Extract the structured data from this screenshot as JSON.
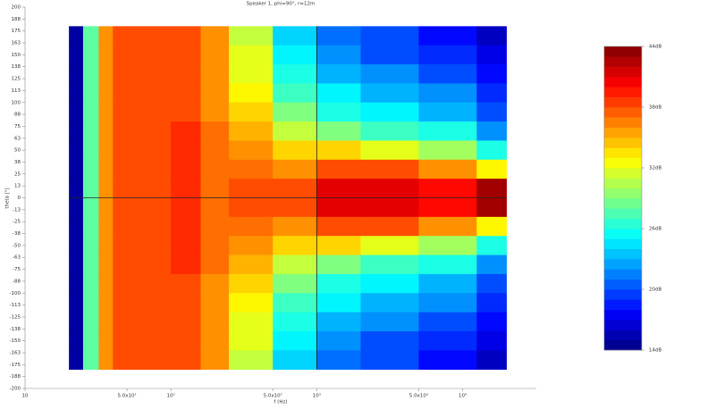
{
  "chart_data": {
    "type": "heatmap",
    "title": "Speaker 1, phi=90°, r=12m",
    "x_label": "f (Hz)",
    "y_label": "theta [°]",
    "log_x": true,
    "xlim": [
      10,
      32000
    ],
    "xticks": [
      10,
      {
        "value": 50,
        "label": "5.0x10¹"
      },
      {
        "value": 100,
        "label": "10²"
      },
      {
        "value": 500,
        "label": "5.0x10²"
      },
      {
        "value": 1000,
        "label": "10³"
      },
      {
        "value": 5000,
        "label": "5.0x10³"
      },
      {
        "value": 10000,
        "label": "10⁴"
      }
    ],
    "ylim": [
      -200,
      200
    ],
    "yticks": [
      200,
      {
        "value": 187.5,
        "label": "188"
      },
      175,
      {
        "value": 162.5,
        "label": "163"
      },
      150,
      {
        "value": 137.5,
        "label": "138"
      },
      125,
      {
        "value": 112.5,
        "label": "113"
      },
      100,
      {
        "value": 87.5,
        "label": "88"
      },
      75,
      {
        "value": 62.5,
        "label": "63"
      },
      50,
      {
        "value": 37.5,
        "label": "38"
      },
      25,
      {
        "value": 12.5,
        "label": "13"
      },
      0,
      {
        "value": -12.5,
        "label": "-13"
      },
      -25,
      {
        "value": -37.5,
        "label": "-38"
      },
      -50,
      {
        "value": -62.5,
        "label": "-63"
      },
      -75,
      {
        "value": -87.5,
        "label": "-88"
      },
      -100,
      {
        "value": -112.5,
        "label": "-113"
      },
      -125,
      {
        "value": -137.5,
        "label": "-138"
      },
      -150,
      {
        "value": -162.5,
        "label": "-163"
      },
      -175,
      {
        "value": -187.5,
        "label": "-188"
      },
      -200
    ],
    "x_edges": [
      20,
      25,
      32,
      40,
      100,
      160,
      250,
      500,
      1000,
      2000,
      5000,
      12500,
      20000
    ],
    "y_edges": [
      180,
      160,
      140,
      120,
      100,
      80,
      60,
      40,
      20,
      0,
      -20,
      -40,
      -60,
      -80,
      -100,
      -120,
      -140,
      -160,
      -180
    ],
    "z": [
      [
        15,
        28,
        36,
        38,
        38,
        36,
        31,
        24,
        21,
        20,
        18,
        16
      ],
      [
        15,
        28,
        36,
        38,
        38,
        36,
        32,
        25,
        22,
        20,
        19,
        17
      ],
      [
        15,
        28,
        36,
        38,
        38,
        36,
        32,
        26,
        23,
        22,
        20,
        18
      ],
      [
        15,
        28,
        36,
        38,
        38,
        36,
        33,
        27,
        25,
        23,
        22,
        19
      ],
      [
        15,
        28,
        36,
        38,
        38,
        36,
        34,
        29,
        26,
        25,
        23,
        20
      ],
      [
        15,
        28,
        36,
        38,
        39,
        37,
        35,
        31,
        29,
        27,
        26,
        22
      ],
      [
        15,
        28,
        36,
        38,
        39,
        37,
        36,
        34,
        34,
        32,
        30,
        26
      ],
      [
        15,
        28,
        36,
        38,
        39,
        37,
        37,
        36,
        38,
        38,
        36,
        33
      ],
      [
        15,
        28,
        36,
        38,
        39,
        37,
        38,
        38,
        41,
        41,
        40,
        43
      ],
      [
        15,
        28,
        36,
        38,
        39,
        37,
        38,
        38,
        41,
        41,
        40,
        43
      ],
      [
        15,
        28,
        36,
        38,
        39,
        37,
        37,
        36,
        38,
        38,
        36,
        33
      ],
      [
        15,
        28,
        36,
        38,
        39,
        37,
        36,
        34,
        34,
        32,
        30,
        26
      ],
      [
        15,
        28,
        36,
        38,
        39,
        37,
        35,
        31,
        29,
        27,
        26,
        22
      ],
      [
        15,
        28,
        36,
        38,
        38,
        36,
        34,
        29,
        26,
        25,
        23,
        20
      ],
      [
        15,
        28,
        36,
        38,
        38,
        36,
        33,
        27,
        25,
        23,
        22,
        19
      ],
      [
        15,
        28,
        36,
        38,
        38,
        36,
        32,
        26,
        23,
        22,
        20,
        18
      ],
      [
        15,
        28,
        36,
        38,
        38,
        36,
        32,
        25,
        22,
        20,
        19,
        17
      ],
      [
        15,
        28,
        36,
        38,
        38,
        36,
        31,
        24,
        21,
        20,
        18,
        16
      ]
    ],
    "crosshair": [
      1000,
      0
    ],
    "colorbar": {
      "lim": [
        14,
        44
      ],
      "ticks": [
        {
          "value": 44,
          "label": "44dB"
        },
        {
          "value": 38,
          "label": "38dB"
        },
        {
          "value": 32,
          "label": "32dB"
        },
        {
          "value": 26,
          "label": "26dB"
        },
        {
          "value": 20,
          "label": "20dB"
        },
        {
          "value": 14,
          "label": "14dB"
        }
      ]
    }
  }
}
